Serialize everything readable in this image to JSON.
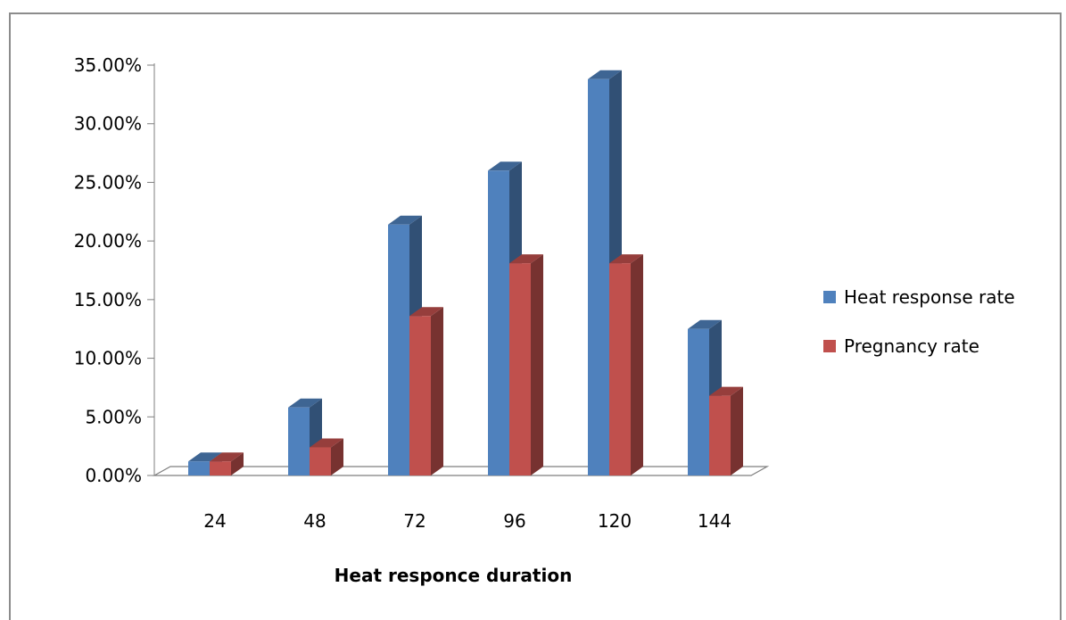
{
  "chart_data": {
    "type": "bar",
    "style": "3d-clustered-column",
    "categories": [
      "24",
      "48",
      "72",
      "96",
      "120",
      "144"
    ],
    "series": [
      {
        "name": "Heat response rate",
        "values": [
          1.2,
          5.8,
          21.4,
          26.0,
          33.8,
          12.5
        ],
        "color": "#4f81bd"
      },
      {
        "name": "Pregnancy rate",
        "values": [
          1.2,
          2.4,
          13.6,
          18.1,
          18.1,
          6.8
        ],
        "color": "#c0504d"
      }
    ],
    "ylim": [
      0,
      35
    ],
    "yticks": [
      0,
      5,
      10,
      15,
      20,
      25,
      30,
      35
    ],
    "ytick_labels": [
      "0.00%",
      "5.00%",
      "10.00%",
      "15.00%",
      "20.00%",
      "25.00%",
      "30.00%",
      "35.00%"
    ],
    "y_unit": "percent",
    "xlabel": "Heat responce duration",
    "ylabel": "",
    "title": "",
    "legend_position": "right",
    "grid": false
  }
}
